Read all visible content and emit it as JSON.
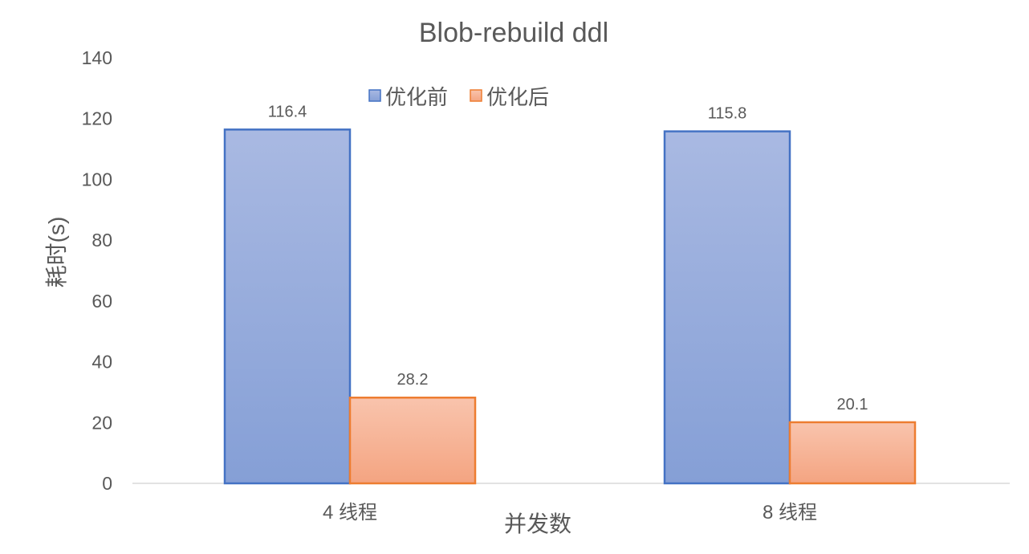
{
  "chart_data": {
    "type": "bar",
    "title": "Blob-rebuild ddl",
    "xlabel": "并发数",
    "ylabel": "耗时(s)",
    "categories": [
      "4 线程",
      "8 线程"
    ],
    "series": [
      {
        "name": "优化前",
        "values": [
          116.4,
          115.8
        ],
        "color_top": "#a9b9e2",
        "color_bottom": "#859fd6",
        "stroke": "#4472c4"
      },
      {
        "name": "优化后",
        "values": [
          28.2,
          20.1
        ],
        "color_top": "#f9c4ad",
        "color_bottom": "#f4a481",
        "stroke": "#ed7d31"
      }
    ],
    "data_labels": [
      [
        "116.4",
        "115.8"
      ],
      [
        "28.2",
        "20.1"
      ]
    ],
    "ylim": [
      0,
      140
    ],
    "yticks": [
      0,
      20,
      40,
      60,
      80,
      100,
      120,
      140
    ],
    "grid": false,
    "legend_position": "top"
  }
}
